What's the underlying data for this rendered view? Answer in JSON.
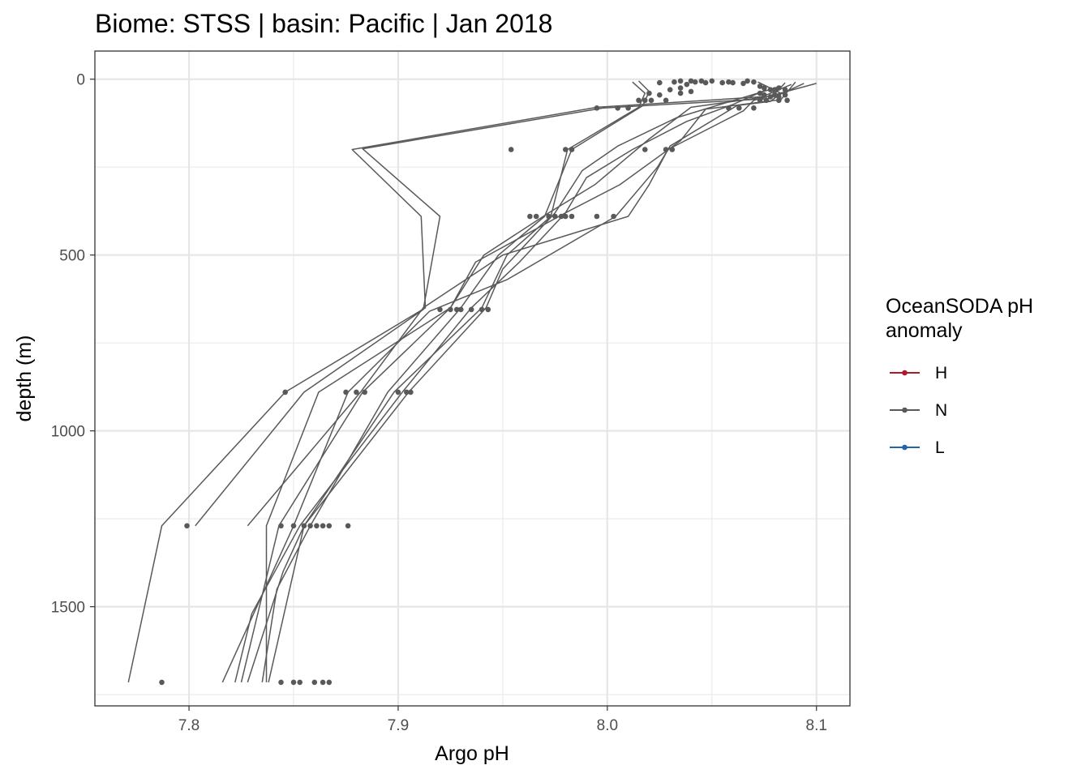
{
  "chart_data": {
    "type": "line",
    "title": "Biome: STSS | basin: Pacific  | Jan 2018",
    "xlabel": "Argo pH",
    "ylabel": "depth (m)",
    "xlim": [
      7.755,
      8.116
    ],
    "ylim": [
      1782,
      -80
    ],
    "y_reversed": true,
    "x_ticks": [
      "7.8",
      "7.9",
      "8.0",
      "8.1"
    ],
    "x_tick_values": [
      7.8,
      7.9,
      8.0,
      8.1
    ],
    "y_ticks": [
      "0",
      "500",
      "1000",
      "1500"
    ],
    "y_tick_values": [
      0,
      500,
      1000,
      1500
    ],
    "grid": true,
    "legend": {
      "title": "OceanSODA pH anomaly",
      "title_lines": [
        "OceanSODA pH",
        "anomaly"
      ],
      "placement": "right",
      "entries": [
        {
          "label": "H",
          "color": "#b2182b"
        },
        {
          "label": "N",
          "color": "#595959"
        },
        {
          "label": "L",
          "color": "#2166ac"
        }
      ]
    },
    "series": [
      {
        "group": "N",
        "color": "#595959",
        "points": [
          [
            8.088,
            15
          ],
          [
            8.074,
            50
          ],
          [
            7.995,
            80
          ],
          [
            7.878,
            200
          ],
          [
            7.911,
            390
          ],
          [
            7.913,
            650
          ],
          [
            7.846,
            890
          ],
          [
            7.787,
            1270
          ],
          [
            7.771,
            1715
          ]
        ]
      },
      {
        "group": "N",
        "color": "#595959",
        "points": [
          [
            8.085,
            10
          ],
          [
            8.078,
            55
          ],
          [
            7.998,
            82
          ],
          [
            7.883,
            198
          ],
          [
            7.92,
            390
          ],
          [
            7.912,
            655
          ],
          [
            7.855,
            890
          ],
          [
            7.803,
            1270
          ]
        ]
      },
      {
        "group": "N",
        "color": "#595959",
        "points": [
          [
            8.094,
            12
          ],
          [
            8.082,
            45
          ],
          [
            8.04,
            80
          ],
          [
            8.02,
            170
          ],
          [
            7.994,
            300
          ],
          [
            7.972,
            380
          ],
          [
            7.941,
            500
          ],
          [
            7.925,
            650
          ],
          [
            7.862,
            890
          ],
          [
            7.837,
            1270
          ],
          [
            7.837,
            1715
          ]
        ]
      },
      {
        "group": "N",
        "color": "#595959",
        "points": [
          [
            8.09,
            8
          ],
          [
            8.083,
            58
          ],
          [
            8.047,
            85
          ],
          [
            8.035,
            175
          ],
          [
            8.006,
            300
          ],
          [
            7.98,
            380
          ],
          [
            7.937,
            520
          ],
          [
            7.925,
            650
          ],
          [
            7.883,
            890
          ],
          [
            7.843,
            1270
          ],
          [
            7.825,
            1715
          ]
        ]
      },
      {
        "group": "N",
        "color": "#595959",
        "points": [
          [
            8.1,
            12
          ],
          [
            8.07,
            60
          ],
          [
            8.065,
            90
          ],
          [
            8.029,
            200
          ],
          [
            8.02,
            300
          ],
          [
            8.01,
            390
          ],
          [
            7.95,
            500
          ],
          [
            7.912,
            650
          ],
          [
            7.882,
            890
          ],
          [
            7.828,
            1270
          ]
        ]
      },
      {
        "group": "N",
        "color": "#595959",
        "points": [
          [
            8.083,
            20
          ],
          [
            8.055,
            70
          ],
          [
            8.033,
            110
          ],
          [
            8.005,
            190
          ],
          [
            7.988,
            260
          ],
          [
            7.975,
            380
          ],
          [
            7.95,
            540
          ],
          [
            7.942,
            650
          ],
          [
            7.905,
            890
          ],
          [
            7.855,
            1270
          ],
          [
            7.838,
            1715
          ]
        ]
      },
      {
        "group": "N",
        "color": "#595959",
        "points": [
          [
            8.076,
            30
          ],
          [
            8.06,
            72
          ],
          [
            8.038,
            120
          ],
          [
            8.012,
            200
          ],
          [
            7.99,
            280
          ],
          [
            7.98,
            380
          ],
          [
            7.958,
            520
          ],
          [
            7.935,
            650
          ],
          [
            7.902,
            890
          ],
          [
            7.853,
            1270
          ],
          [
            7.83,
            1520
          ],
          [
            7.822,
            1715
          ]
        ]
      },
      {
        "group": "N",
        "color": "#595959",
        "points": [
          [
            8.072,
            8
          ],
          [
            8.083,
            40
          ],
          [
            8.078,
            63
          ],
          [
            8.062,
            75
          ],
          [
            8.03,
            190
          ],
          [
            8.024,
            250
          ],
          [
            8.004,
            390
          ],
          [
            7.952,
            570
          ],
          [
            7.915,
            660
          ],
          [
            7.876,
            890
          ],
          [
            7.85,
            1270
          ],
          [
            7.816,
            1715
          ]
        ]
      },
      {
        "group": "N",
        "color": "#595959",
        "points": [
          [
            8.015,
            5
          ],
          [
            8.02,
            35
          ],
          [
            8.017,
            75
          ],
          [
            7.983,
            200
          ],
          [
            7.97,
            390
          ],
          [
            7.948,
            500
          ],
          [
            7.93,
            650
          ],
          [
            7.895,
            890
          ],
          [
            7.858,
            1270
          ],
          [
            7.842,
            1450
          ],
          [
            7.835,
            1715
          ]
        ]
      },
      {
        "group": "N",
        "color": "#595959",
        "points": [
          [
            8.012,
            8
          ],
          [
            8.018,
            40
          ],
          [
            8.015,
            80
          ],
          [
            7.981,
            200
          ],
          [
            7.973,
            390
          ],
          [
            7.952,
            500
          ],
          [
            7.94,
            650
          ],
          [
            7.898,
            890
          ],
          [
            7.855,
            1270
          ],
          [
            7.845,
            1400
          ],
          [
            7.828,
            1715
          ]
        ]
      }
    ],
    "points": [
      [
        8.025,
        10
      ],
      [
        8.032,
        8
      ],
      [
        8.035,
        5
      ],
      [
        8.038,
        15
      ],
      [
        8.04,
        5
      ],
      [
        8.042,
        8
      ],
      [
        8.045,
        5
      ],
      [
        8.047,
        10
      ],
      [
        8.05,
        5
      ],
      [
        8.055,
        10
      ],
      [
        8.058,
        8
      ],
      [
        8.06,
        10
      ],
      [
        8.065,
        12
      ],
      [
        8.067,
        5
      ],
      [
        8.07,
        8
      ],
      [
        8.073,
        20
      ],
      [
        8.075,
        25
      ],
      [
        8.078,
        30
      ],
      [
        8.08,
        30
      ],
      [
        8.082,
        25
      ],
      [
        8.085,
        30
      ],
      [
        8.03,
        30
      ],
      [
        8.035,
        25
      ],
      [
        8.04,
        35
      ],
      [
        8.02,
        40
      ],
      [
        8.025,
        45
      ],
      [
        8.035,
        40
      ],
      [
        8.073,
        40
      ],
      [
        8.075,
        45
      ],
      [
        8.078,
        50
      ],
      [
        8.08,
        45
      ],
      [
        8.082,
        50
      ],
      [
        8.085,
        45
      ],
      [
        8.015,
        60
      ],
      [
        8.018,
        60
      ],
      [
        8.021,
        60
      ],
      [
        8.028,
        60
      ],
      [
        8.073,
        60
      ],
      [
        8.076,
        60
      ],
      [
        8.082,
        60
      ],
      [
        8.086,
        60
      ],
      [
        7.995,
        82
      ],
      [
        8.005,
        82
      ],
      [
        8.01,
        82
      ],
      [
        8.058,
        82
      ],
      [
        8.063,
        82
      ],
      [
        8.07,
        82
      ],
      [
        7.954,
        200
      ],
      [
        7.98,
        200
      ],
      [
        7.983,
        200
      ],
      [
        8.018,
        200
      ],
      [
        8.028,
        200
      ],
      [
        8.031,
        200
      ],
      [
        7.963,
        390
      ],
      [
        7.966,
        390
      ],
      [
        7.972,
        390
      ],
      [
        7.975,
        390
      ],
      [
        7.978,
        390
      ],
      [
        7.98,
        390
      ],
      [
        7.983,
        390
      ],
      [
        7.995,
        390
      ],
      [
        8.003,
        390
      ],
      [
        7.92,
        655
      ],
      [
        7.925,
        655
      ],
      [
        7.928,
        655
      ],
      [
        7.93,
        655
      ],
      [
        7.935,
        655
      ],
      [
        7.94,
        655
      ],
      [
        7.943,
        655
      ],
      [
        7.846,
        890
      ],
      [
        7.875,
        890
      ],
      [
        7.88,
        890
      ],
      [
        7.884,
        890
      ],
      [
        7.9,
        890
      ],
      [
        7.904,
        890
      ],
      [
        7.906,
        890
      ],
      [
        7.799,
        1270
      ],
      [
        7.844,
        1270
      ],
      [
        7.85,
        1270
      ],
      [
        7.855,
        1270
      ],
      [
        7.858,
        1270
      ],
      [
        7.861,
        1270
      ],
      [
        7.864,
        1270
      ],
      [
        7.867,
        1270
      ],
      [
        7.876,
        1270
      ],
      [
        7.787,
        1715
      ],
      [
        7.844,
        1715
      ],
      [
        7.85,
        1715
      ],
      [
        7.853,
        1715
      ],
      [
        7.86,
        1715
      ],
      [
        7.864,
        1715
      ],
      [
        7.867,
        1715
      ]
    ]
  }
}
